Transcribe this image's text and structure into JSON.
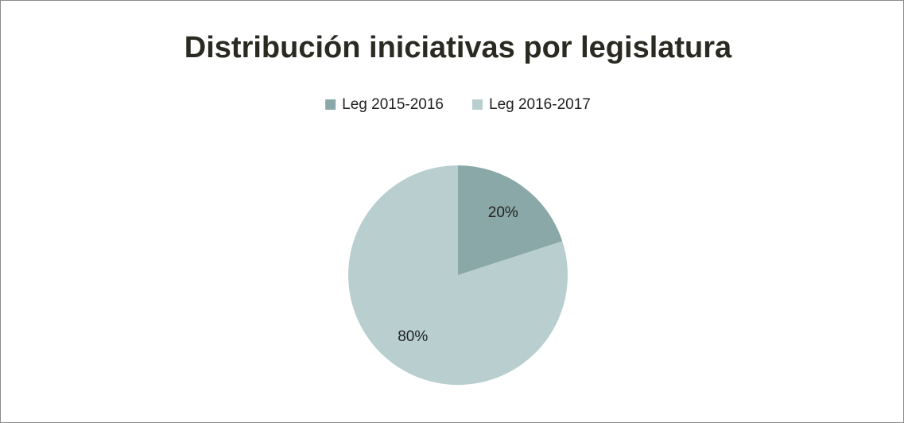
{
  "chart_data": {
    "type": "pie",
    "title": "Distribución iniciativas por legislatura",
    "categories": [
      "Leg 2015-2016",
      "Leg 2016-2017"
    ],
    "values": [
      20,
      80
    ],
    "value_labels": [
      "20%",
      "80%"
    ],
    "colors": [
      "#8aa8a7",
      "#b8cecf"
    ],
    "legend": "top"
  }
}
